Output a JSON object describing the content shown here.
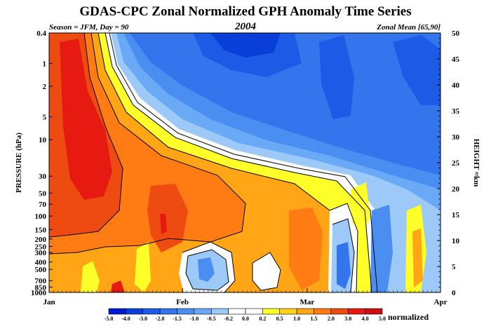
{
  "chart_data": {
    "type": "heatmap",
    "title": "GDAS-CPC Zonal Normalized GPH Anomaly Time Series",
    "subtitle_left": "Season = JFM, Day =  90",
    "subtitle_center": "2004",
    "subtitle_right": "Zonal Mean [65,90]",
    "ylabel_left": "PRESSURE (hPa)",
    "ylabel_right": "HEIGHT ≈km",
    "pressure_ticks": [
      "0.4",
      "1",
      "2",
      "5",
      "10",
      "30",
      "50",
      "70",
      "100",
      "150",
      "200",
      "250",
      "300",
      "400",
      "500",
      "700",
      "850",
      "1000"
    ],
    "height_ticks": [
      "50",
      "45",
      "40",
      "35",
      "30",
      "25",
      "20",
      "15",
      "10",
      "5",
      "0"
    ],
    "time_ticks": [
      "Jan",
      "Feb",
      "Mar",
      "Apr"
    ],
    "colorbar": {
      "label": "normalized",
      "levels": [
        "-5.0",
        "-4.0",
        "-3.0",
        "-2.0",
        "-1.5",
        "-1.0",
        "-0.5",
        "-0.2",
        "0.0",
        "0.2",
        "0.5",
        "1.0",
        "1.5",
        "2.0",
        "3.0",
        "4.0",
        "5.0"
      ],
      "colors": [
        "#0018cf",
        "#0a3ed8",
        "#1d5ae6",
        "#3475ee",
        "#4a8ef2",
        "#6aa9f5",
        "#9cc9f8",
        "#ffffff",
        "#ffffff",
        "#ffff2a",
        "#ffd21a",
        "#ffa516",
        "#ff7c14",
        "#ee4b12",
        "#e61a10",
        "#cc0f0f"
      ]
    }
  }
}
